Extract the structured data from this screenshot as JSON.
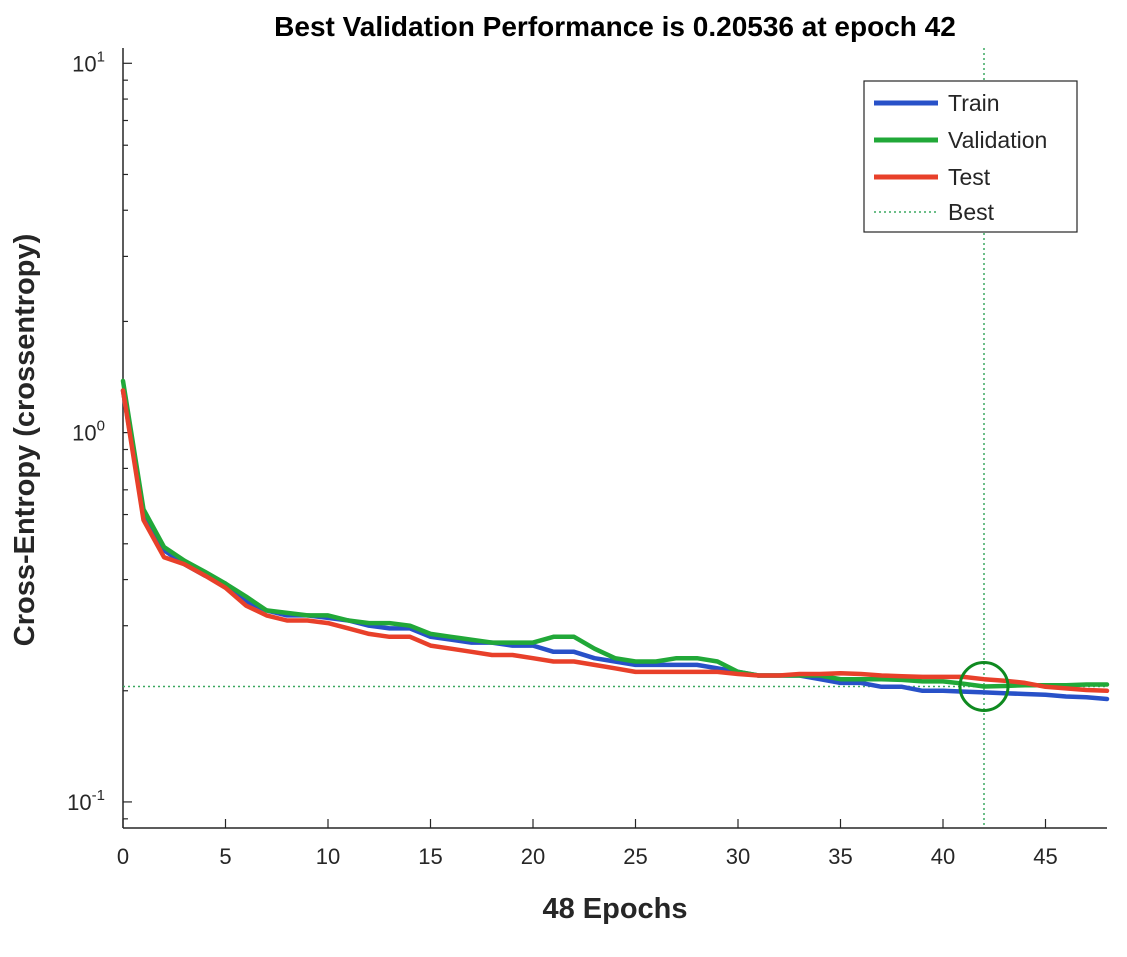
{
  "chart_data": {
    "type": "line",
    "title": "Best Validation Performance is 0.20536 at epoch 42",
    "xlabel": "48 Epochs",
    "ylabel": "Cross-Entropy  (crossentropy)",
    "xlim": [
      0,
      48
    ],
    "ylim": [
      0.085,
      11
    ],
    "yscale": "log",
    "xticks": [
      "0",
      "5",
      "10",
      "15",
      "20",
      "25",
      "30",
      "35",
      "40",
      "45"
    ],
    "yticks": [
      {
        "base": "10",
        "exp": "1",
        "value": 10
      },
      {
        "base": "10",
        "exp": "0",
        "value": 1
      },
      {
        "base": "10",
        "exp": "-1",
        "value": 0.1
      }
    ],
    "grid": false,
    "legend_position": "top-right",
    "x": [
      0,
      1,
      2,
      3,
      4,
      5,
      6,
      7,
      8,
      9,
      10,
      11,
      12,
      13,
      14,
      15,
      16,
      17,
      18,
      19,
      20,
      21,
      22,
      23,
      24,
      25,
      26,
      27,
      28,
      29,
      30,
      31,
      32,
      33,
      34,
      35,
      36,
      37,
      38,
      39,
      40,
      41,
      42,
      43,
      44,
      45,
      46,
      47,
      48
    ],
    "series": [
      {
        "name": "Train",
        "color": "#2851c8",
        "values": [
          1.3,
          0.6,
          0.48,
          0.44,
          0.41,
          0.39,
          0.35,
          0.33,
          0.32,
          0.32,
          0.315,
          0.31,
          0.3,
          0.295,
          0.295,
          0.28,
          0.275,
          0.27,
          0.27,
          0.265,
          0.265,
          0.255,
          0.255,
          0.245,
          0.24,
          0.235,
          0.235,
          0.235,
          0.235,
          0.23,
          0.225,
          0.22,
          0.22,
          0.22,
          0.215,
          0.21,
          0.21,
          0.205,
          0.205,
          0.2,
          0.2,
          0.199,
          0.198,
          0.197,
          0.196,
          0.195,
          0.193,
          0.192,
          0.19
        ]
      },
      {
        "name": "Validation",
        "color": "#21a838",
        "values": [
          1.38,
          0.62,
          0.49,
          0.45,
          0.42,
          0.39,
          0.36,
          0.33,
          0.325,
          0.32,
          0.32,
          0.31,
          0.305,
          0.305,
          0.3,
          0.285,
          0.28,
          0.275,
          0.27,
          0.27,
          0.27,
          0.28,
          0.28,
          0.26,
          0.245,
          0.24,
          0.24,
          0.245,
          0.245,
          0.24,
          0.225,
          0.22,
          0.22,
          0.22,
          0.22,
          0.215,
          0.215,
          0.215,
          0.214,
          0.212,
          0.212,
          0.209,
          0.2054,
          0.206,
          0.207,
          0.207,
          0.207,
          0.208,
          0.208
        ]
      },
      {
        "name": "Test",
        "color": "#e8402a",
        "values": [
          1.3,
          0.58,
          0.46,
          0.44,
          0.41,
          0.38,
          0.34,
          0.32,
          0.31,
          0.31,
          0.305,
          0.295,
          0.285,
          0.28,
          0.28,
          0.265,
          0.26,
          0.255,
          0.25,
          0.25,
          0.245,
          0.24,
          0.24,
          0.235,
          0.23,
          0.225,
          0.225,
          0.225,
          0.225,
          0.225,
          0.222,
          0.22,
          0.22,
          0.222,
          0.222,
          0.223,
          0.222,
          0.22,
          0.219,
          0.218,
          0.218,
          0.218,
          0.215,
          0.213,
          0.21,
          0.205,
          0.203,
          0.201,
          0.2
        ]
      }
    ],
    "best": {
      "name": "Best",
      "epoch": 42,
      "value": 0.20536,
      "color": "#3aa860"
    }
  }
}
